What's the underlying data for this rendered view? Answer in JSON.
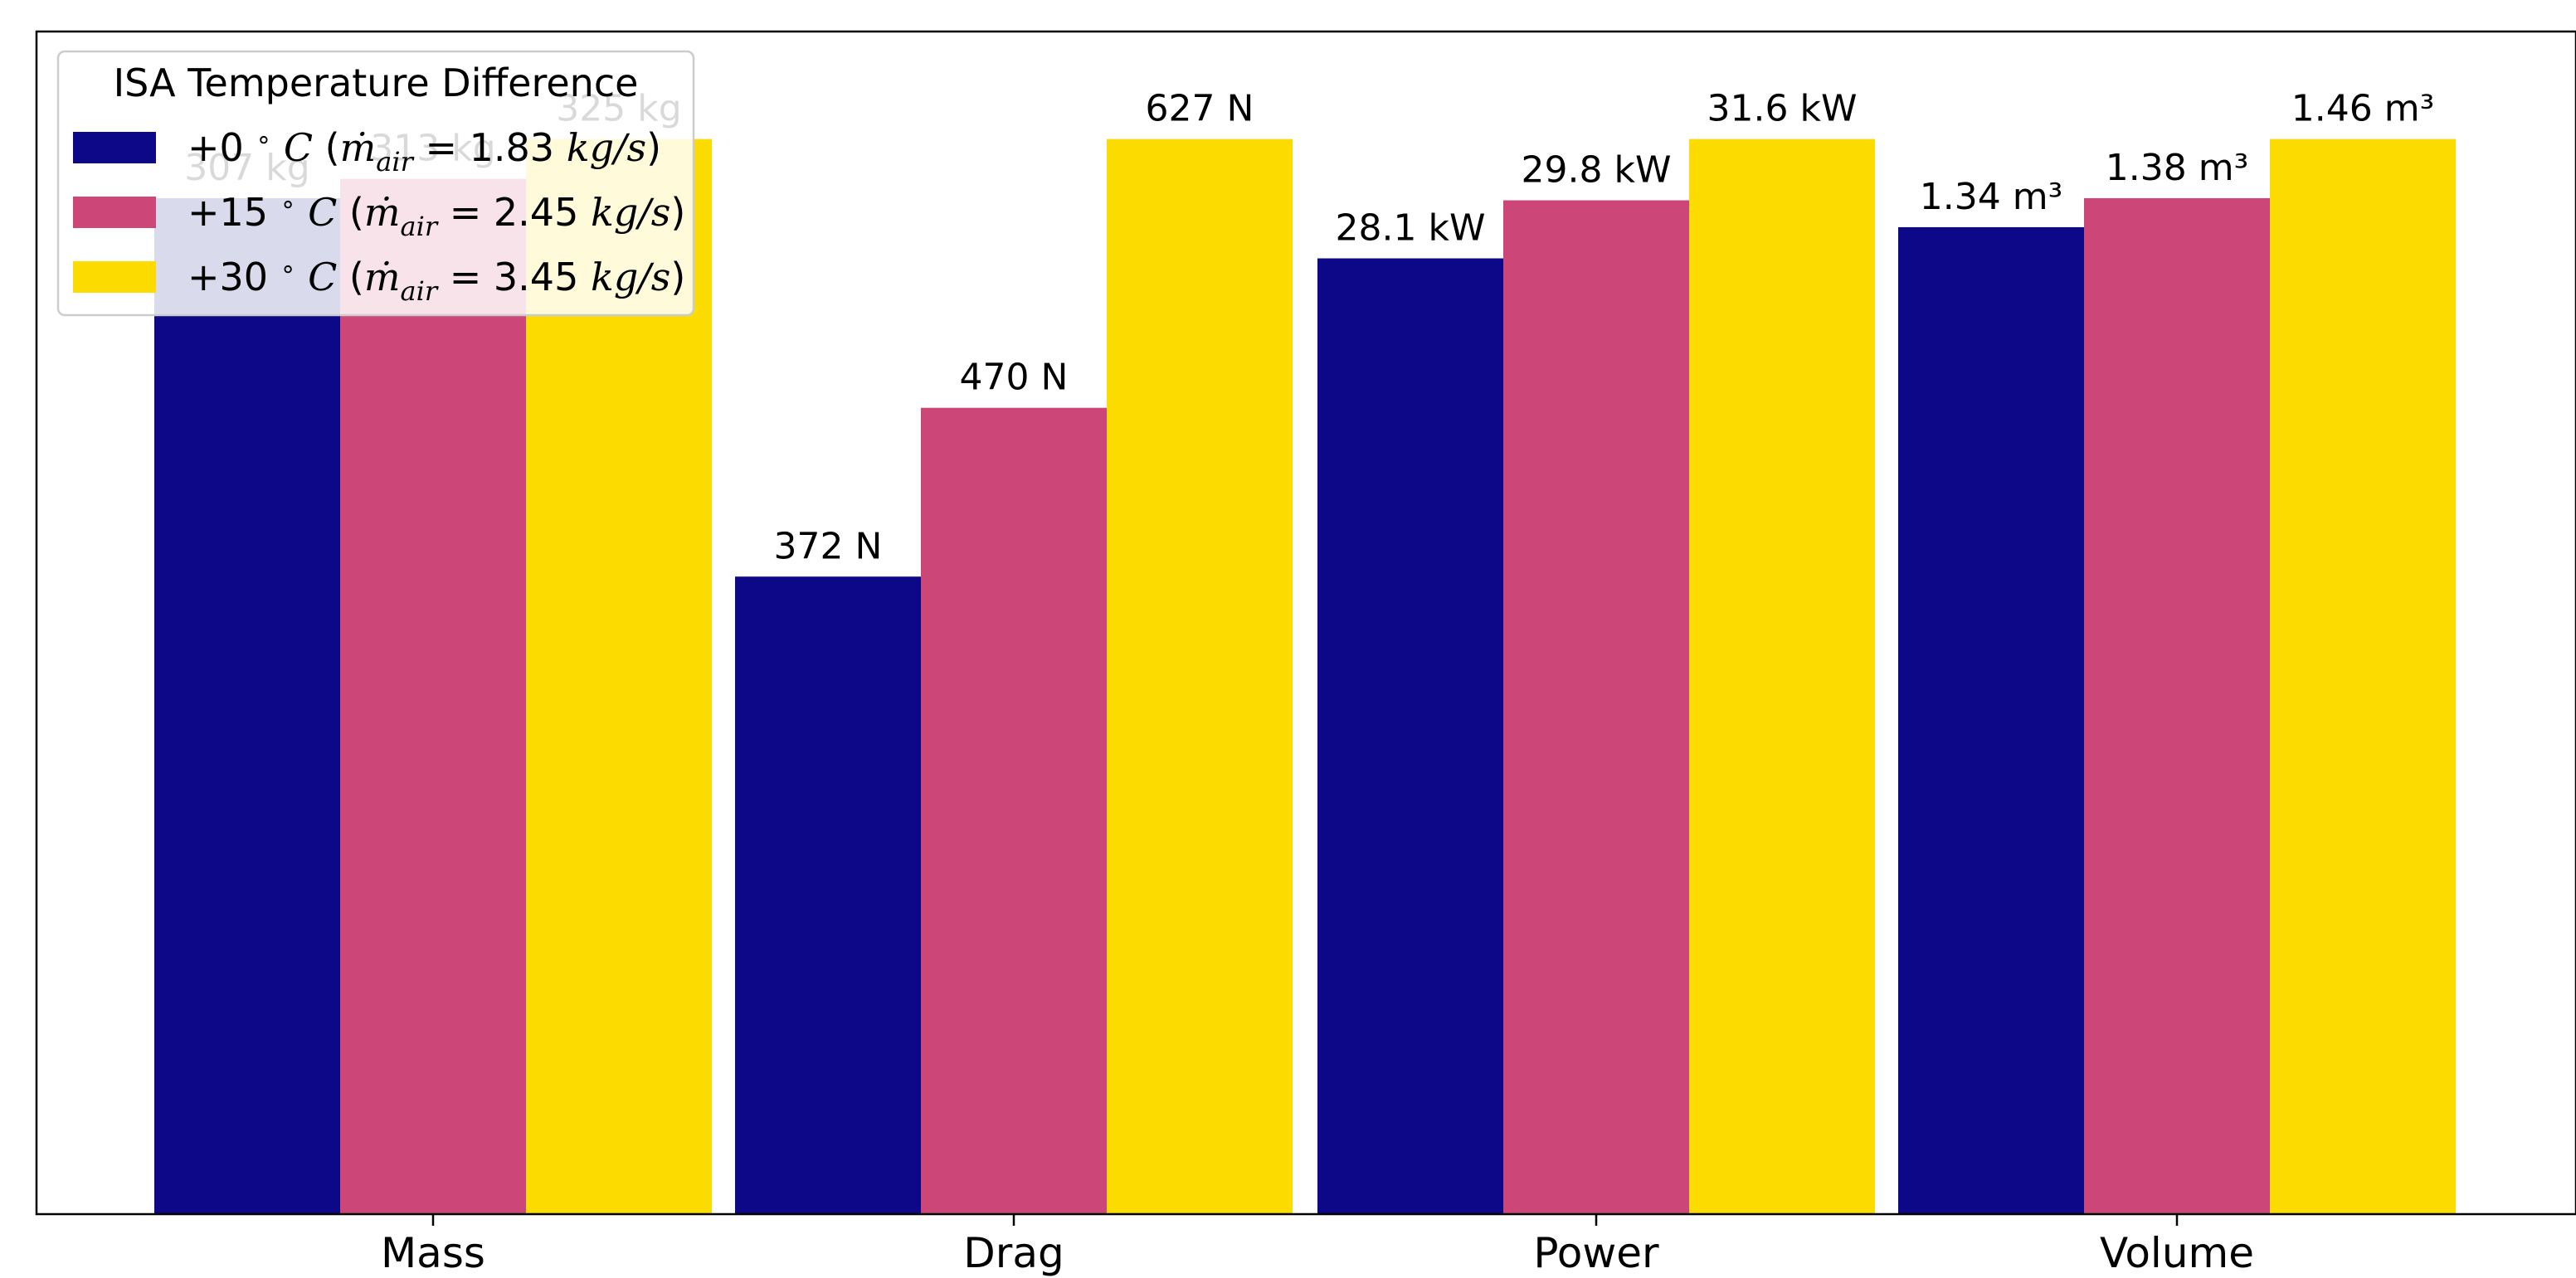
{
  "chart_data": {
    "type": "bar",
    "title": "",
    "xlabel": "",
    "ylabel": "",
    "categories": [
      "Mass",
      "Drag",
      "Power",
      "Volume"
    ],
    "normalized": true,
    "ylim": [
      0,
      1.1
    ],
    "series": [
      {
        "name": "+0 °C (ṁair = 1.83 kg/s)",
        "color": "#0d0887",
        "values": [
          0.945,
          0.593,
          0.889,
          0.918
        ],
        "labels": [
          "307 kg",
          "372 N",
          "28.1 kW",
          "1.34 m³"
        ]
      },
      {
        "name": "+15 °C (ṁair = 2.45 kg/s)",
        "color": "#cc4778",
        "values": [
          0.963,
          0.75,
          0.943,
          0.945
        ],
        "labels": [
          "313 kg",
          "470 N",
          "29.8 kW",
          "1.38 m³"
        ]
      },
      {
        "name": "+30 °C (ṁair = 3.45 kg/s)",
        "color": "#fcdc00",
        "values": [
          1.0,
          1.0,
          1.0,
          1.0
        ],
        "labels": [
          "325 kg",
          "627 N",
          "31.6 kW",
          "1.46 m³"
        ]
      }
    ],
    "legend": {
      "title": "ISA Temperature Difference",
      "position": "top-left",
      "entries": [
        {
          "prefix": "+0",
          "mdot": "1.83"
        },
        {
          "prefix": "+15",
          "mdot": "2.45"
        },
        {
          "prefix": "+30",
          "mdot": "3.45"
        }
      ],
      "degree_symbol": "∘",
      "temp_unit": "C",
      "mdot_symbol": "ṁ",
      "mdot_subscript": "air",
      "equals": "=",
      "flow_unit": "kg/s",
      "paren_open": "(",
      "paren_close": ")"
    }
  }
}
